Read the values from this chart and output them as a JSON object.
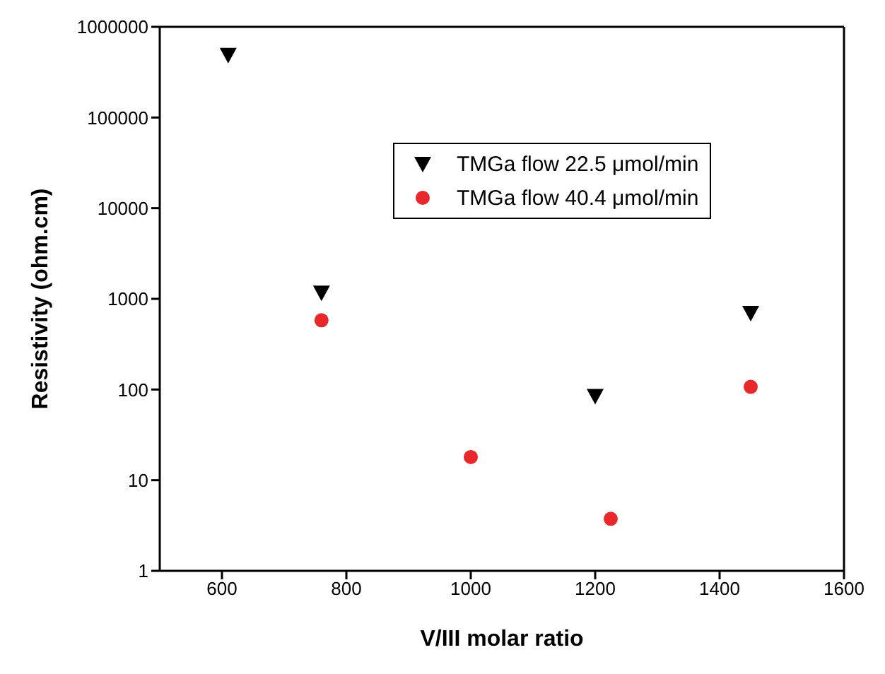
{
  "chart_data": {
    "type": "scatter",
    "xlabel": "V/III molar ratio",
    "ylabel": "Resistivity (ohm.cm)",
    "xlim": [
      500,
      1600
    ],
    "xticks": [
      600,
      800,
      1000,
      1200,
      1400,
      1600
    ],
    "ylim": [
      1,
      1000000
    ],
    "yticks": [
      1,
      10,
      100,
      1000,
      10000,
      100000,
      1000000
    ],
    "log": "y",
    "legend": "top right",
    "series": [
      {
        "name": "TMGa flow 22.5 μmol/min",
        "color": "#000000",
        "marker": "triangle",
        "x": [
          610,
          760,
          1200,
          1450
        ],
        "values": [
          490000,
          1170,
          85,
          700
        ]
      },
      {
        "name": "TMGa flow 40.4 μmol/min",
        "color": "#e8282b",
        "marker": "circle",
        "x": [
          760,
          1000,
          1225,
          1450
        ],
        "values": [
          580,
          18,
          3.75,
          107
        ]
      }
    ]
  }
}
